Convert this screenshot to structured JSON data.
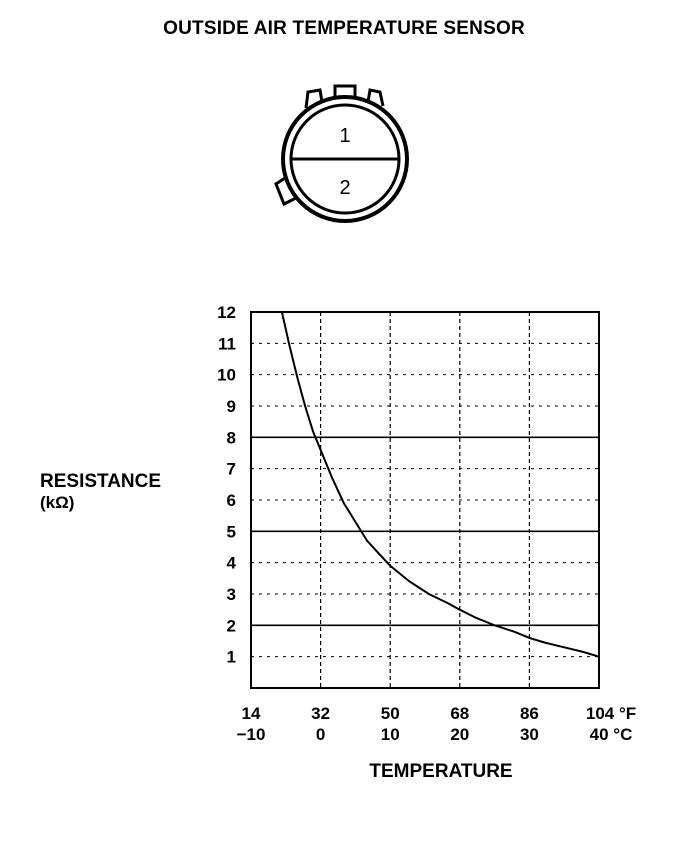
{
  "title": "OUTSIDE AIR TEMPERATURE SENSOR",
  "connector": {
    "pins": [
      "1",
      "2"
    ]
  },
  "chart_data": {
    "type": "line",
    "title": "OUTSIDE AIR TEMPERATURE SENSOR",
    "ylabel": "RESISTANCE",
    "ylabel_unit": "(kΩ)",
    "xlabel": "TEMPERATURE",
    "ylim": [
      0,
      12
    ],
    "xlim": [
      14,
      104
    ],
    "yticks": [
      "1",
      "2",
      "3",
      "4",
      "5",
      "6",
      "7",
      "8",
      "9",
      "10",
      "11",
      "12"
    ],
    "x_ticks_f": [
      "14",
      "32",
      "50",
      "68",
      "86",
      "104 °F"
    ],
    "x_ticks_c": [
      "−10",
      "0",
      "10",
      "20",
      "30",
      "40 °C"
    ],
    "x_tick_values_f": [
      14,
      32,
      50,
      68,
      86,
      104
    ],
    "grid": true,
    "series": [
      {
        "x": [
          22,
          24,
          26,
          28,
          30,
          32,
          35,
          38,
          41,
          44,
          47,
          50,
          55,
          60,
          65,
          68,
          72,
          77,
          82,
          86,
          90,
          95,
          100,
          104
        ],
        "y": [
          12.0,
          10.9,
          9.9,
          9.0,
          8.2,
          7.6,
          6.7,
          5.9,
          5.3,
          4.7,
          4.3,
          3.9,
          3.4,
          3.0,
          2.7,
          2.5,
          2.25,
          2.0,
          1.8,
          1.6,
          1.45,
          1.3,
          1.15,
          1.0
        ]
      }
    ]
  }
}
